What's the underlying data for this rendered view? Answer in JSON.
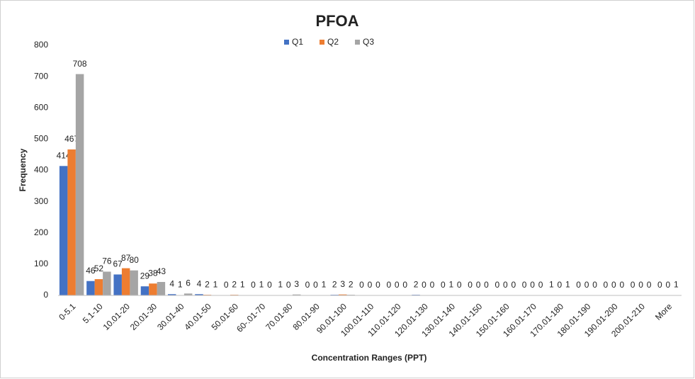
{
  "chart_data": {
    "type": "bar",
    "title": "PFOA",
    "x_label": "Concentration Ranges (PPT)",
    "y_label": "Frequency",
    "categories": [
      "0-5.1",
      "5.1-10",
      "10.01-20",
      "20.01-30",
      "30.01-40",
      "40.01-50",
      "50.01-60",
      "60-.01-70",
      "70.01-80",
      "80.01-90",
      "90.01-100",
      "100.01-110",
      "110.01-120",
      "120.01-130",
      "130.01-140",
      "140.01-150",
      "150.01-160",
      "160.01-170",
      "170.01-180",
      "180.01-190",
      "190.01-200",
      "200.01-210",
      "More"
    ],
    "series": [
      {
        "name": "Q1",
        "color": "#4472c4",
        "values": [
          414,
          46,
          67,
          29,
          4,
          4,
          0,
          0,
          1,
          0,
          2,
          0,
          0,
          2,
          0,
          0,
          0,
          0,
          1,
          0,
          0,
          0,
          0
        ]
      },
      {
        "name": "Q2",
        "color": "#ed7d31",
        "values": [
          467,
          52,
          87,
          38,
          1,
          2,
          2,
          1,
          0,
          0,
          3,
          0,
          0,
          0,
          1,
          0,
          0,
          0,
          0,
          0,
          0,
          0,
          0
        ]
      },
      {
        "name": "Q3",
        "color": "#a5a5a5",
        "values": [
          708,
          76,
          80,
          43,
          6,
          1,
          1,
          0,
          3,
          1,
          2,
          0,
          0,
          0,
          0,
          0,
          0,
          0,
          1,
          0,
          0,
          0,
          1
        ]
      }
    ],
    "ylim": [
      0,
      800
    ],
    "yticks": [
      0,
      100,
      200,
      300,
      400,
      500,
      600,
      700,
      800
    ],
    "grid": false,
    "legend": "top"
  }
}
